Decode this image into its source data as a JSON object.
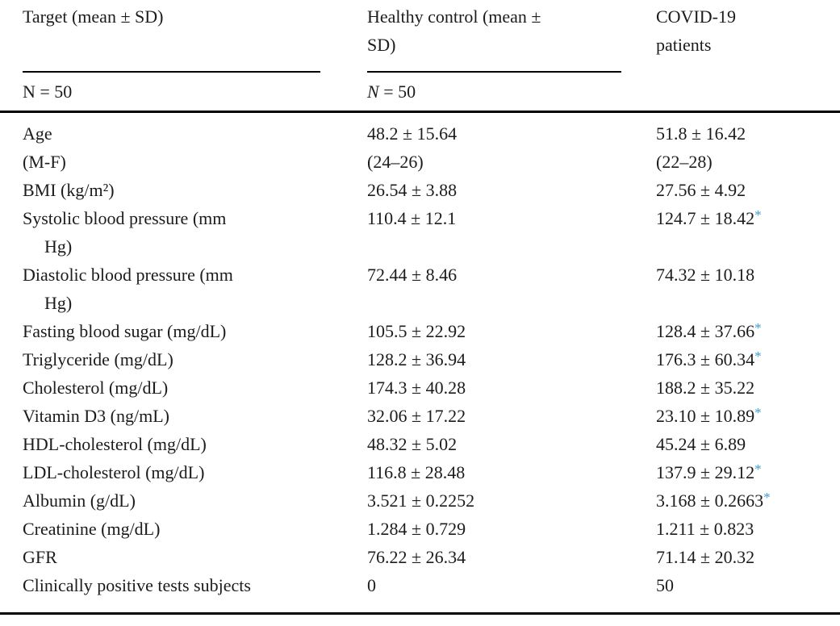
{
  "table": {
    "header": {
      "col1": {
        "title_lines": [
          "Target (mean ± SD)"
        ],
        "n_label": "N",
        "n_value": " = 50"
      },
      "col2": {
        "title_lines": [
          "Healthy control (mean ±",
          "SD)"
        ],
        "n_label": "N",
        "n_value": " = 50"
      },
      "col3": {
        "title_lines": [
          "COVID-19",
          "patients"
        ]
      }
    },
    "rows": [
      {
        "label_lines": [
          "Age"
        ],
        "healthy": "48.2 ± 15.64",
        "covid": "51.8 ± 16.42",
        "covid_star": false
      },
      {
        "label_lines": [
          "(M-F)"
        ],
        "healthy": "(24–26)",
        "covid": "(22–28)",
        "covid_star": false
      },
      {
        "label_lines": [
          "BMI (kg/m²)"
        ],
        "healthy": "26.54 ± 3.88",
        "covid": "27.56 ± 4.92",
        "covid_star": false
      },
      {
        "label_lines": [
          "Systolic blood pressure (mm",
          "Hg)"
        ],
        "healthy": "110.4 ± 12.1",
        "covid": "124.7 ± 18.42",
        "covid_star": true
      },
      {
        "label_lines": [
          "Diastolic blood pressure (mm",
          "Hg)"
        ],
        "healthy": "72.44 ± 8.46",
        "covid": "74.32 ± 10.18",
        "covid_star": false
      },
      {
        "label_lines": [
          "Fasting blood sugar (mg/dL)"
        ],
        "healthy": "105.5 ± 22.92",
        "covid": "128.4 ± 37.66",
        "covid_star": true
      },
      {
        "label_lines": [
          "Triglyceride (mg/dL)"
        ],
        "healthy": "128.2 ± 36.94",
        "covid": "176.3 ± 60.34",
        "covid_star": true
      },
      {
        "label_lines": [
          "Cholesterol (mg/dL)"
        ],
        "healthy": "174.3 ± 40.28",
        "covid": "188.2 ± 35.22",
        "covid_star": false
      },
      {
        "label_lines": [
          "Vitamin D3 (ng/mL)"
        ],
        "healthy": "32.06 ± 17.22",
        "covid": "23.10 ± 10.89",
        "covid_star": true
      },
      {
        "label_lines": [
          "HDL-cholesterol (mg/dL)"
        ],
        "healthy": "48.32 ± 5.02",
        "covid": "45.24 ± 6.89",
        "covid_star": false
      },
      {
        "label_lines": [
          "LDL-cholesterol (mg/dL)"
        ],
        "healthy": "116.8 ± 28.48",
        "covid": "137.9 ± 29.12",
        "covid_star": true
      },
      {
        "label_lines": [
          "Albumin (g/dL)"
        ],
        "healthy": "3.521 ± 0.2252",
        "covid": "3.168 ± 0.2663",
        "covid_star": true
      },
      {
        "label_lines": [
          "Creatinine (mg/dL)"
        ],
        "healthy": "1.284 ± 0.729",
        "covid": "1.211 ± 0.823",
        "covid_star": false
      },
      {
        "label_lines": [
          "GFR"
        ],
        "healthy": "76.22 ± 26.34",
        "covid": "71.14 ± 20.32",
        "covid_star": false
      },
      {
        "label_lines": [
          "Clinically positive tests subjects"
        ],
        "healthy": "0",
        "covid": "50",
        "covid_star": false
      }
    ],
    "star_symbol": "*",
    "colors": {
      "text": "#1c1c1c",
      "star": "#3d9bd3",
      "rule": "#000000"
    }
  }
}
